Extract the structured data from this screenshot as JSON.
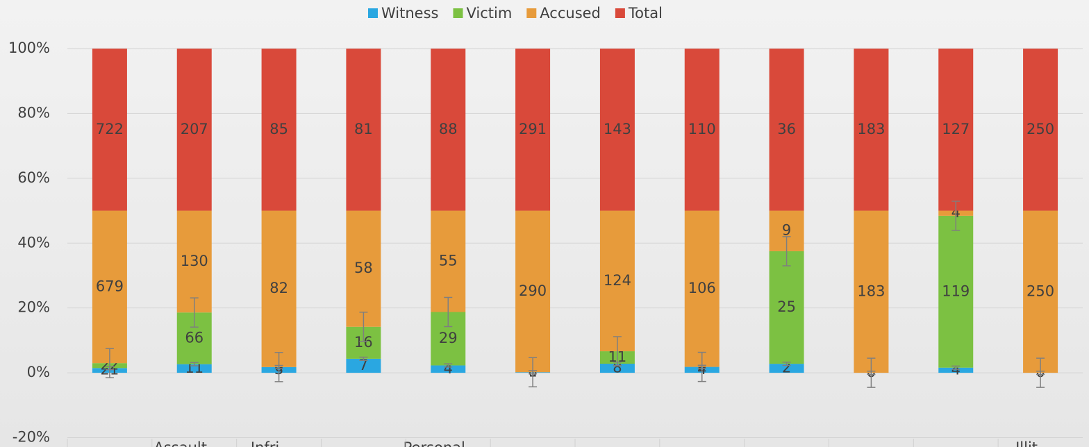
{
  "chart_data": {
    "type": "bar",
    "stacking": "percent",
    "categories": [
      null,
      "Assault",
      "Infri",
      null,
      "Personal",
      null,
      null,
      null,
      null,
      null,
      null,
      "Illit"
    ],
    "series": [
      {
        "name": "Witness",
        "color": "#2aa7e1",
        "values": [
          21,
          11,
          3,
          7,
          4,
          1,
          8,
          4,
          2,
          0,
          4,
          0
        ],
        "errors": [
          0.5,
          0.5,
          0.5,
          0.5,
          0.5,
          0.5,
          0.5,
          0.5,
          0.5,
          0.5,
          0.5,
          0.5
        ]
      },
      {
        "name": "Victim",
        "color": "#7cc142",
        "values": [
          22,
          66,
          0,
          16,
          29,
          0,
          11,
          0,
          25,
          0,
          119,
          0
        ],
        "errors": [
          4.5,
          4.5,
          4.5,
          4.5,
          4.5,
          4.5,
          4.5,
          4.5,
          4.5,
          4.5,
          4.5,
          4.5
        ]
      },
      {
        "name": "Accused",
        "color": "#e79b3b",
        "values": [
          679,
          130,
          82,
          58,
          55,
          290,
          124,
          106,
          9,
          183,
          4,
          250
        ]
      },
      {
        "name": "Total",
        "color": "#d9493a",
        "values": [
          722,
          207,
          85,
          81,
          88,
          291,
          143,
          110,
          36,
          183,
          127,
          250
        ]
      }
    ],
    "ylim": [
      -20,
      100
    ],
    "yticks": [
      {
        "value": -20,
        "label": "-20%"
      },
      {
        "value": 0,
        "label": "0%"
      },
      {
        "value": 20,
        "label": "20%"
      },
      {
        "value": 40,
        "label": "40%"
      },
      {
        "value": 60,
        "label": "60%"
      },
      {
        "value": 80,
        "label": "80%"
      },
      {
        "value": 100,
        "label": "100%"
      }
    ],
    "grid": true,
    "legend": "top"
  }
}
